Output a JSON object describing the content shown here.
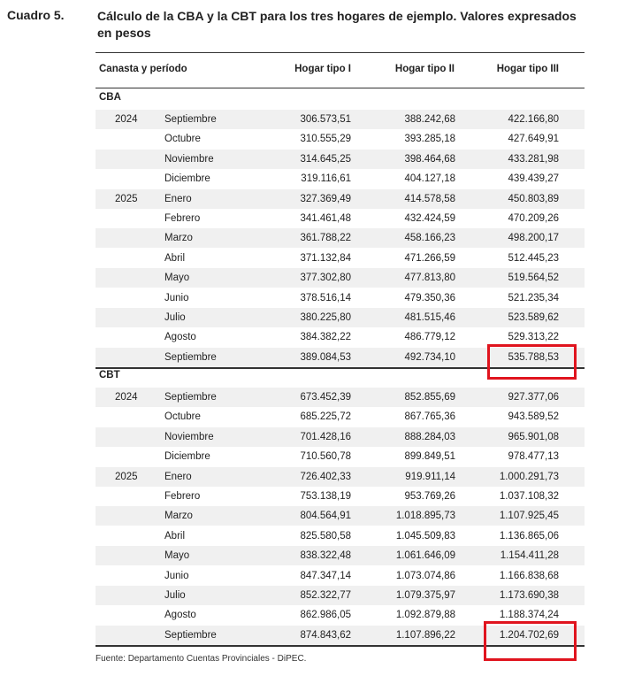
{
  "label": "Cuadro 5.",
  "title": "Cálculo de la CBA y la CBT para los tres hogares de ejemplo. Valores expresados en pesos",
  "headers": [
    "Canasta y período",
    "Hogar tipo I",
    "Hogar tipo II",
    "Hogar tipo III"
  ],
  "sections": [
    {
      "name": "CBA",
      "rows": [
        [
          "2024",
          "Septiembre",
          "306.573,51",
          "388.242,68",
          "422.166,80"
        ],
        [
          "",
          "Octubre",
          "310.555,29",
          "393.285,18",
          "427.649,91"
        ],
        [
          "",
          "Noviembre",
          "314.645,25",
          "398.464,68",
          "433.281,98"
        ],
        [
          "",
          "Diciembre",
          "319.116,61",
          "404.127,18",
          "439.439,27"
        ],
        [
          "2025",
          "Enero",
          "327.369,49",
          "414.578,58",
          "450.803,89"
        ],
        [
          "",
          "Febrero",
          "341.461,48",
          "432.424,59",
          "470.209,26"
        ],
        [
          "",
          "Marzo",
          "361.788,22",
          "458.166,23",
          "498.200,17"
        ],
        [
          "",
          "Abril",
          "371.132,84",
          "471.266,59",
          "512.445,23"
        ],
        [
          "",
          "Mayo",
          "377.302,80",
          "477.813,80",
          "519.564,52"
        ],
        [
          "",
          "Junio",
          "378.516,14",
          "479.350,36",
          "521.235,34"
        ],
        [
          "",
          "Julio",
          "380.225,80",
          "481.515,46",
          "523.589,62"
        ],
        [
          "",
          "Agosto",
          "384.382,22",
          "486.779,12",
          "529.313,22"
        ],
        [
          "",
          "Septiembre",
          "389.084,53",
          "492.734,10",
          "535.788,53"
        ]
      ]
    },
    {
      "name": "CBT",
      "rows": [
        [
          "2024",
          "Septiembre",
          "673.452,39",
          "852.855,69",
          "927.377,06"
        ],
        [
          "",
          "Octubre",
          "685.225,72",
          "867.765,36",
          "943.589,52"
        ],
        [
          "",
          "Noviembre",
          "701.428,16",
          "888.284,03",
          "965.901,08"
        ],
        [
          "",
          "Diciembre",
          "710.560,78",
          "899.849,51",
          "978.477,13"
        ],
        [
          "2025",
          "Enero",
          "726.402,33",
          "919.911,14",
          "1.000.291,73"
        ],
        [
          "",
          "Febrero",
          "753.138,19",
          "953.769,26",
          "1.037.108,32"
        ],
        [
          "",
          "Marzo",
          "804.564,91",
          "1.018.895,73",
          "1.107.925,45"
        ],
        [
          "",
          "Abril",
          "825.580,58",
          "1.045.509,83",
          "1.136.865,06"
        ],
        [
          "",
          "Mayo",
          "838.322,48",
          "1.061.646,09",
          "1.154.411,28"
        ],
        [
          "",
          "Junio",
          "847.347,14",
          "1.073.074,86",
          "1.166.838,68"
        ],
        [
          "",
          "Julio",
          "852.322,77",
          "1.079.375,97",
          "1.173.690,38"
        ],
        [
          "",
          "Agosto",
          "862.986,05",
          "1.092.879,88",
          "1.188.374,24"
        ],
        [
          "",
          "Septiembre",
          "874.843,62",
          "1.107.896,22",
          "1.204.702,69"
        ]
      ]
    }
  ],
  "source": "Fuente: Departamento Cuentas Provinciales - DiPEC.",
  "highlight_color": "#e0141e"
}
